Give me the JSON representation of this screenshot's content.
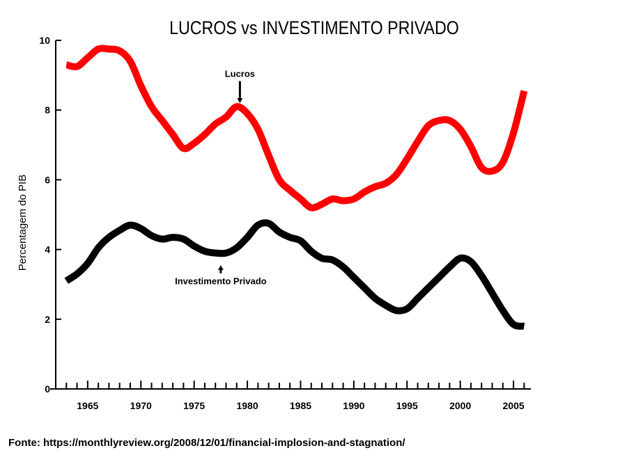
{
  "chart_data": {
    "type": "line",
    "title": "LUCROS vs INVESTIMENTO PRIVADO",
    "xlabel": "",
    "ylabel": "Percentagem do PIB",
    "xlim": [
      1962,
      2006.5
    ],
    "ylim": [
      0,
      10
    ],
    "yticks": [
      0,
      2,
      4,
      6,
      8,
      10
    ],
    "xticks": [
      1965,
      1970,
      1975,
      1980,
      1985,
      1990,
      1995,
      2000,
      2005
    ],
    "grid": false,
    "series": [
      {
        "name": "Lucros",
        "color": "#ff0000",
        "x": [
          1963,
          1964,
          1965,
          1966,
          1967,
          1968,
          1969,
          1970,
          1971,
          1972,
          1973,
          1974,
          1975,
          1976,
          1977,
          1978,
          1979,
          1980,
          1981,
          1982,
          1983,
          1984,
          1985,
          1986,
          1987,
          1988,
          1989,
          1990,
          1991,
          1992,
          1993,
          1994,
          1995,
          1996,
          1997,
          1998,
          1999,
          2000,
          2001,
          2002,
          2003,
          2004,
          2005,
          2006
        ],
        "values": [
          9.3,
          9.25,
          9.5,
          9.75,
          9.75,
          9.7,
          9.4,
          8.7,
          8.1,
          7.7,
          7.3,
          6.9,
          7.05,
          7.3,
          7.6,
          7.8,
          8.1,
          7.9,
          7.45,
          6.7,
          6.0,
          5.7,
          5.45,
          5.2,
          5.3,
          5.45,
          5.4,
          5.45,
          5.65,
          5.8,
          5.9,
          6.15,
          6.6,
          7.1,
          7.55,
          7.7,
          7.7,
          7.45,
          6.95,
          6.35,
          6.25,
          6.5,
          7.35,
          8.55
        ]
      },
      {
        "name": "Investimento Privado",
        "color": "#000000",
        "x": [
          1963,
          1964,
          1965,
          1966,
          1967,
          1968,
          1969,
          1970,
          1971,
          1972,
          1973,
          1974,
          1975,
          1976,
          1977,
          1978,
          1979,
          1980,
          1981,
          1982,
          1983,
          1984,
          1985,
          1986,
          1987,
          1988,
          1989,
          1990,
          1991,
          1992,
          1993,
          1994,
          1995,
          1996,
          1997,
          1998,
          1999,
          2000,
          2001,
          2002,
          2003,
          2004,
          2005,
          2006
        ],
        "values": [
          3.1,
          3.3,
          3.6,
          4.05,
          4.35,
          4.55,
          4.7,
          4.6,
          4.4,
          4.3,
          4.35,
          4.3,
          4.1,
          3.95,
          3.9,
          3.9,
          4.05,
          4.35,
          4.7,
          4.75,
          4.5,
          4.35,
          4.25,
          3.95,
          3.75,
          3.7,
          3.5,
          3.2,
          2.9,
          2.6,
          2.4,
          2.25,
          2.3,
          2.6,
          2.9,
          3.2,
          3.5,
          3.75,
          3.65,
          3.25,
          2.75,
          2.25,
          1.85,
          1.8
        ]
      }
    ],
    "annotations": [
      {
        "text": "Lucros",
        "x": 1979.3,
        "y": 8.2,
        "label_y": 8.95,
        "color": "#000000"
      },
      {
        "text": "Investimento Privado",
        "x": 1977.5,
        "y": 3.55,
        "label_y": 3.0,
        "color": "#000000"
      }
    ]
  },
  "source": "Fonte: https://monthlyreview.org/2008/12/01/financial-implosion-and-stagnation/"
}
